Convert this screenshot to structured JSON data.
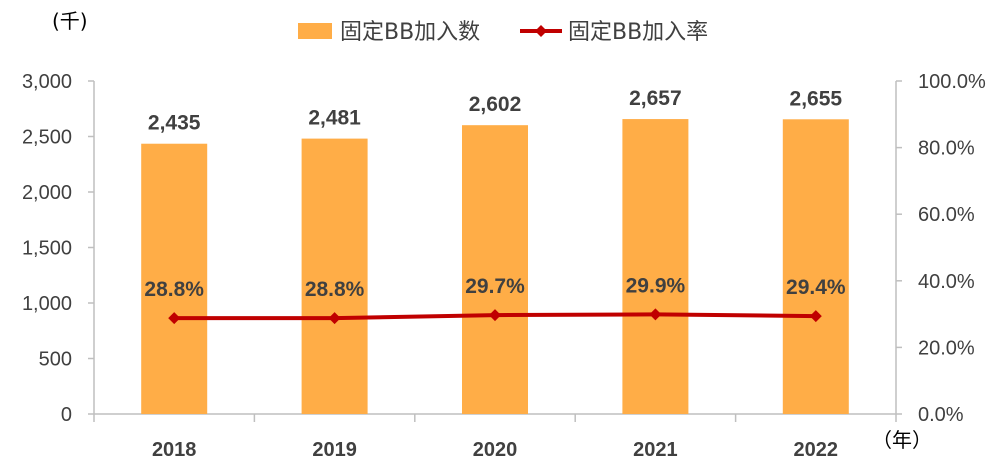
{
  "chart_data": {
    "type": "bar",
    "categories": [
      "2018",
      "2019",
      "2020",
      "2021",
      "2022"
    ],
    "series": [
      {
        "name": "固定BB加入数",
        "type": "bar",
        "axis": "left",
        "values": [
          2435,
          2481,
          2602,
          2657,
          2655
        ],
        "labels": [
          "2,435",
          "2,481",
          "2,602",
          "2,657",
          "2,655"
        ],
        "color": "#FFAD47"
      },
      {
        "name": "固定BB加入率",
        "type": "line",
        "axis": "right",
        "values": [
          28.8,
          28.8,
          29.7,
          29.9,
          29.4
        ],
        "labels": [
          "28.8%",
          "28.8%",
          "29.7%",
          "29.9%",
          "29.4%"
        ],
        "color": "#C00000",
        "marker": "diamond"
      }
    ],
    "y_left": {
      "unit_label": "(千)",
      "ylim": [
        0,
        3000
      ],
      "ticks": [
        "3,000",
        "2,500",
        "2,000",
        "1,500",
        "1,000",
        "500",
        "0"
      ]
    },
    "y_right": {
      "ylim": [
        0,
        100
      ],
      "ticks": [
        "100.0%",
        "80.0%",
        "60.0%",
        "40.0%",
        "20.0%",
        "0.0%"
      ]
    },
    "x_unit_label": "（年）",
    "legend_position": "top-center",
    "grid": false
  }
}
